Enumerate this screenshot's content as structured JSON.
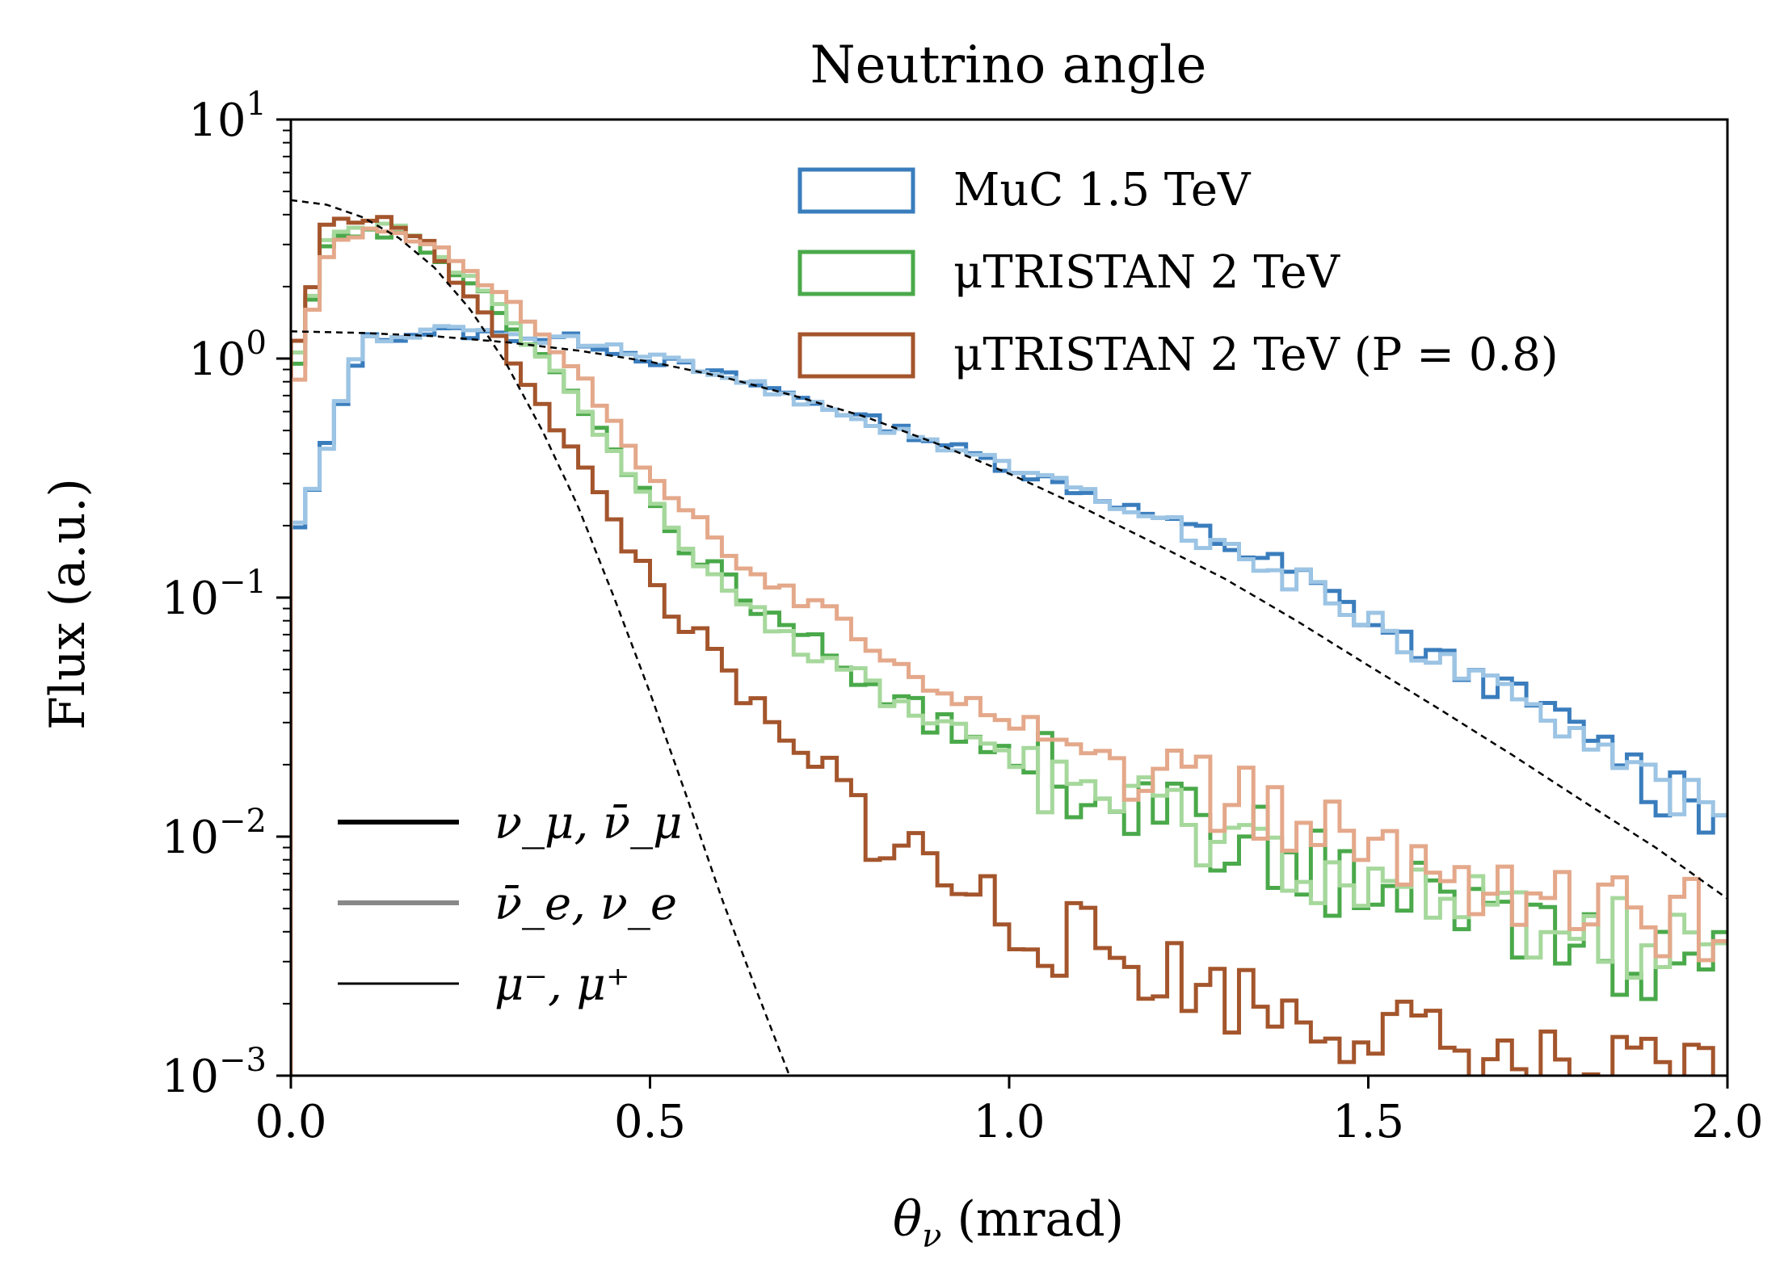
{
  "chart_data": {
    "type": "line",
    "title": "Neutrino angle",
    "xlabel": "θ_ν (mrad)",
    "ylabel": "Flux (a.u.)",
    "xlim": [
      0,
      2
    ],
    "ylim": [
      0.001,
      10
    ],
    "yscale": "log",
    "grid": false,
    "x_ticks": [
      0,
      0.5,
      1.0,
      1.5,
      2.0
    ],
    "x_tick_labels": [
      "0.0",
      "0.5",
      "1.0",
      "1.5",
      "2.0"
    ],
    "y_ticks": [
      0.001,
      0.01,
      0.1,
      1,
      10
    ],
    "y_tick_labels": [
      {
        "base": "10",
        "exp": "−3"
      },
      {
        "base": "10",
        "exp": "−2"
      },
      {
        "base": "10",
        "exp": "−1"
      },
      {
        "base": "10",
        "exp": "0"
      },
      {
        "base": "10",
        "exp": "1"
      }
    ],
    "legend_datasets": {
      "placement": "top-right",
      "entries": [
        {
          "label": "MuC 1.5 TeV",
          "color": "#3a7dbd"
        },
        {
          "label": "μTRISTAN 2 TeV",
          "color": "#4aa94a"
        },
        {
          "label": "μTRISTAN 2 TeV (P = 0.8)",
          "color": "#a4552c"
        }
      ]
    },
    "legend_species": {
      "placement": "bottom-left",
      "entries": [
        {
          "label": "ν_μ, ν̄_μ",
          "color": "#000000",
          "weight": "thick"
        },
        {
          "label": "ν̄_e, ν_e",
          "color": "#888888",
          "weight": "thick"
        },
        {
          "label": "μ⁻, μ⁺",
          "color": "#000000",
          "weight": "thin"
        }
      ]
    },
    "bin_width": 0.02,
    "series": [
      {
        "dataset": "MuC 1.5 TeV",
        "species": "nu_mu",
        "color": "#3a7dbd",
        "style": "step",
        "x": [
          0.0,
          0.1,
          0.2,
          0.3,
          0.4,
          0.5,
          0.6,
          0.7,
          0.8,
          0.9,
          1.0,
          1.1,
          1.2,
          1.3,
          1.4,
          1.5,
          1.6,
          1.7,
          1.8,
          1.9,
          2.0
        ],
        "y": [
          0.15,
          1.2,
          1.3,
          1.25,
          1.2,
          1.0,
          0.85,
          0.7,
          0.56,
          0.45,
          0.35,
          0.28,
          0.22,
          0.17,
          0.125,
          0.08,
          0.055,
          0.04,
          0.028,
          0.018,
          0.013
        ]
      },
      {
        "dataset": "MuC 1.5 TeV",
        "species": "nu_e",
        "color": "#9cc4e4",
        "style": "step",
        "x": [
          0.0,
          0.1,
          0.2,
          0.3,
          0.4,
          0.5,
          0.6,
          0.7,
          0.8,
          0.9,
          1.0,
          1.1,
          1.2,
          1.3,
          1.4,
          1.5,
          1.6,
          1.7,
          1.8,
          1.9,
          2.0
        ],
        "y": [
          0.16,
          1.2,
          1.3,
          1.26,
          1.18,
          1.0,
          0.86,
          0.69,
          0.55,
          0.44,
          0.35,
          0.28,
          0.21,
          0.16,
          0.12,
          0.08,
          0.055,
          0.038,
          0.027,
          0.018,
          0.016
        ]
      },
      {
        "dataset": "μTRISTAN 2 TeV",
        "species": "nu_mu",
        "color": "#4aa94a",
        "style": "step",
        "x": [
          0.0,
          0.05,
          0.1,
          0.15,
          0.2,
          0.25,
          0.3,
          0.35,
          0.4,
          0.45,
          0.5,
          0.6,
          0.7,
          0.8,
          0.9,
          1.0,
          1.1,
          1.2,
          1.3,
          1.4,
          1.5,
          1.6,
          1.7,
          1.8,
          1.9,
          2.0
        ],
        "y": [
          0.7,
          3.0,
          3.5,
          3.3,
          2.8,
          2.1,
          1.5,
          1.0,
          0.65,
          0.4,
          0.25,
          0.12,
          0.07,
          0.045,
          0.03,
          0.022,
          0.017,
          0.013,
          0.01,
          0.008,
          0.006,
          0.005,
          0.004,
          0.0035,
          0.003,
          0.0028
        ]
      },
      {
        "dataset": "μTRISTAN 2 TeV",
        "species": "nu_e",
        "color": "#a6d89c",
        "style": "step",
        "x": [
          0.0,
          0.05,
          0.1,
          0.15,
          0.2,
          0.25,
          0.3,
          0.35,
          0.4,
          0.45,
          0.5,
          0.6,
          0.7,
          0.8,
          0.9,
          1.0,
          1.1,
          1.2,
          1.3,
          1.4,
          1.5,
          1.6,
          1.7,
          1.8,
          1.9,
          2.0
        ],
        "y": [
          0.8,
          3.1,
          3.6,
          3.4,
          2.9,
          2.1,
          1.5,
          1.0,
          0.65,
          0.4,
          0.26,
          0.12,
          0.065,
          0.043,
          0.03,
          0.022,
          0.016,
          0.012,
          0.01,
          0.008,
          0.006,
          0.005,
          0.0045,
          0.004,
          0.0035,
          0.003
        ]
      },
      {
        "dataset": "μTRISTAN 2 TeV (P = 0.8)",
        "species": "nu_mu",
        "color": "#a4552c",
        "style": "step",
        "x": [
          0.0,
          0.05,
          0.1,
          0.15,
          0.2,
          0.25,
          0.3,
          0.35,
          0.4,
          0.45,
          0.5,
          0.6,
          0.7,
          0.8,
          0.9,
          1.0,
          1.1,
          1.2,
          1.3,
          1.4,
          1.5,
          1.6,
          1.7,
          1.8,
          1.9,
          2.0
        ],
        "y": [
          0.9,
          3.5,
          4.0,
          3.6,
          2.8,
          1.8,
          1.1,
          0.65,
          0.38,
          0.21,
          0.12,
          0.05,
          0.022,
          0.012,
          0.007,
          0.0045,
          0.0035,
          0.0028,
          0.0022,
          0.0018,
          0.0016,
          0.0013,
          0.0011,
          0.001,
          0.001,
          0.001
        ]
      },
      {
        "dataset": "μTRISTAN 2 TeV (P = 0.8)",
        "species": "nu_e",
        "color": "#e4a88a",
        "style": "step",
        "x": [
          0.0,
          0.05,
          0.1,
          0.15,
          0.2,
          0.25,
          0.3,
          0.35,
          0.4,
          0.45,
          0.5,
          0.6,
          0.7,
          0.8,
          0.9,
          1.0,
          1.1,
          1.2,
          1.3,
          1.4,
          1.5,
          1.6,
          1.7,
          1.8,
          1.9,
          2.0
        ],
        "y": [
          0.6,
          2.8,
          3.3,
          3.3,
          3.0,
          2.4,
          1.8,
          1.3,
          0.85,
          0.55,
          0.33,
          0.17,
          0.1,
          0.065,
          0.045,
          0.032,
          0.024,
          0.018,
          0.014,
          0.011,
          0.009,
          0.007,
          0.006,
          0.005,
          0.0045,
          0.0045
        ]
      },
      {
        "dataset": "MuC 1.5 TeV",
        "species": "mu",
        "color": "#000000",
        "style": "dashed",
        "x": [
          0.0,
          0.1,
          0.2,
          0.3,
          0.4,
          0.5,
          0.6,
          0.7,
          0.8,
          0.9,
          1.0,
          1.1,
          1.2,
          1.3,
          1.4,
          1.5,
          1.6,
          1.7,
          1.8,
          1.9,
          2.0
        ],
        "y": [
          1.3,
          1.28,
          1.24,
          1.17,
          1.08,
          0.97,
          0.84,
          0.7,
          0.57,
          0.44,
          0.33,
          0.24,
          0.17,
          0.12,
          0.08,
          0.052,
          0.034,
          0.022,
          0.014,
          0.009,
          0.0055
        ]
      },
      {
        "dataset": "μTRISTAN 2 TeV",
        "species": "mu",
        "color": "#000000",
        "style": "dashed",
        "x": [
          0.0,
          0.05,
          0.1,
          0.15,
          0.2,
          0.25,
          0.3,
          0.35,
          0.4,
          0.45,
          0.5,
          0.55,
          0.6,
          0.65,
          0.7
        ],
        "y": [
          4.6,
          4.4,
          3.9,
          3.2,
          2.4,
          1.6,
          0.95,
          0.5,
          0.24,
          0.1,
          0.04,
          0.015,
          0.0055,
          0.0022,
          0.0009
        ]
      }
    ]
  }
}
